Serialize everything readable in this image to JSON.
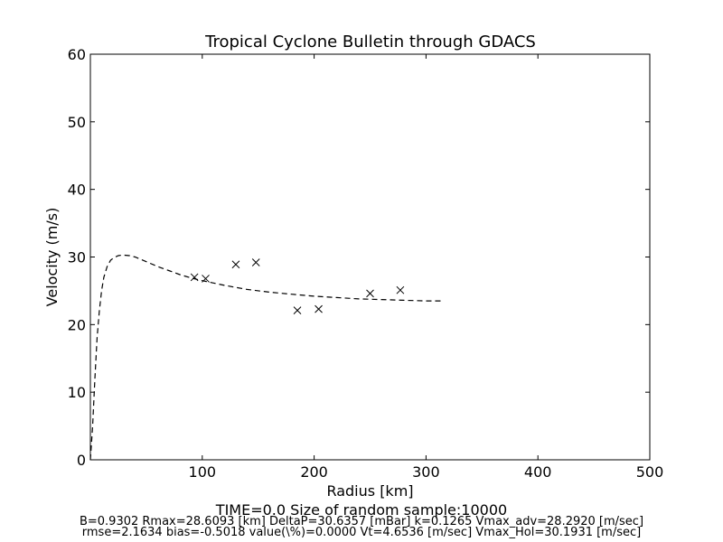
{
  "chart_data": {
    "type": "line",
    "title": "Tropical Cyclone Bulletin through GDACS",
    "xlabel": "Radius [km]",
    "ylabel": "Velocity (m/s)",
    "xlim": [
      0,
      500
    ],
    "ylim": [
      0,
      60
    ],
    "xticks": [
      100,
      200,
      300,
      400,
      500
    ],
    "yticks": [
      0,
      10,
      20,
      30,
      40,
      50,
      60
    ],
    "grid": false,
    "series": [
      {
        "style": "dashed-line",
        "color": "#000000",
        "x": [
          0,
          2,
          4,
          6,
          8,
          10,
          12,
          15,
          18,
          21,
          25,
          28.6,
          35,
          40,
          50,
          60,
          70,
          80,
          90,
          100,
          120,
          140,
          160,
          180,
          200,
          220,
          240,
          260,
          280,
          300,
          313
        ],
        "y": [
          0,
          5,
          12,
          18,
          22,
          25,
          27,
          28.6,
          29.5,
          29.9,
          30.2,
          30.3,
          30.2,
          30.0,
          29.3,
          28.6,
          28.0,
          27.4,
          26.9,
          26.5,
          25.8,
          25.2,
          24.8,
          24.5,
          24.2,
          24.0,
          23.8,
          23.7,
          23.6,
          23.5,
          23.5
        ]
      },
      {
        "style": "x-markers",
        "color": "#000000",
        "x": [
          93,
          103,
          130,
          148,
          185,
          204,
          250,
          277
        ],
        "y": [
          27.0,
          26.8,
          28.9,
          29.2,
          22.1,
          22.3,
          24.6,
          25.1
        ]
      }
    ]
  },
  "footer": {
    "line1": "TIME=0.0     Size of random sample:10000",
    "line2": "B=0.9302 Rmax=28.6093 [km]  DeltaP=30.6357 [mBar] k=0.1265 Vmax_adv=28.2920 [m/sec]",
    "line3": "rmse=2.1634 bias=-0.5018 value(\\%)=0.0000 Vt=4.6536 [m/sec] Vmax_Hol=30.1931 [m/sec]"
  }
}
